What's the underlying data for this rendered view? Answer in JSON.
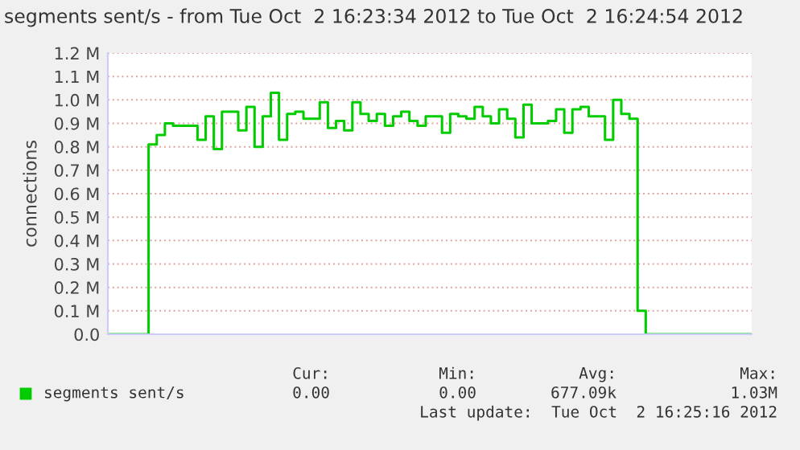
{
  "chart_data": {
    "type": "step",
    "title": "segments sent/s - from Tue Oct  2 16:23:34 2012 to Tue Oct  2 16:24:54 2012",
    "ylabel": "connections",
    "categories": [
      null,
      null,
      null,
      null,
      null,
      null,
      null,
      null,
      null,
      null,
      null,
      null,
      null,
      null,
      null,
      null,
      null,
      null,
      null,
      null,
      null,
      null,
      null,
      null,
      null,
      null,
      null,
      null,
      null,
      null,
      null,
      null,
      null,
      null,
      null,
      null,
      null,
      null,
      null,
      null,
      null,
      null,
      null,
      null,
      null,
      null,
      null,
      null,
      null,
      null,
      null,
      null,
      null,
      null,
      null,
      null,
      null,
      null,
      null,
      null,
      null,
      null,
      null,
      null,
      null,
      null,
      null,
      null,
      null,
      null,
      null,
      null,
      null,
      null,
      null,
      null,
      null,
      null,
      null,
      null
    ],
    "series": [
      {
        "name": "segments sent/s",
        "color": "#00cc00",
        "values": [
          0,
          0,
          0,
          0,
          0,
          810000,
          850000,
          900000,
          890000,
          890000,
          890000,
          830000,
          930000,
          790000,
          950000,
          950000,
          870000,
          970000,
          800000,
          930000,
          1030000,
          830000,
          940000,
          950000,
          920000,
          920000,
          990000,
          880000,
          910000,
          870000,
          990000,
          940000,
          910000,
          940000,
          890000,
          930000,
          950000,
          910000,
          890000,
          930000,
          930000,
          860000,
          940000,
          930000,
          920000,
          970000,
          930000,
          900000,
          960000,
          920000,
          840000,
          980000,
          900000,
          900000,
          910000,
          960000,
          860000,
          960000,
          970000,
          930000,
          930000,
          830000,
          1000000,
          940000,
          920000,
          100000,
          0,
          0,
          0,
          0,
          0,
          0,
          0,
          0,
          0,
          0,
          0,
          0,
          0,
          0
        ]
      }
    ],
    "ylim": [
      0,
      1200000
    ],
    "yticks": [
      {
        "value": 0,
        "label": "0.0"
      },
      {
        "value": 100000,
        "label": "0.1 M"
      },
      {
        "value": 200000,
        "label": "0.2 M"
      },
      {
        "value": 300000,
        "label": "0.3 M"
      },
      {
        "value": 400000,
        "label": "0.4 M"
      },
      {
        "value": 500000,
        "label": "0.5 M"
      },
      {
        "value": 600000,
        "label": "0.6 M"
      },
      {
        "value": 700000,
        "label": "0.7 M"
      },
      {
        "value": 800000,
        "label": "0.8 M"
      },
      {
        "value": 900000,
        "label": "0.9 M"
      },
      {
        "value": 1000000,
        "label": "1.0 M"
      },
      {
        "value": 1100000,
        "label": "1.1 M"
      },
      {
        "value": 1200000,
        "label": "1.2 M"
      }
    ],
    "grid": "y",
    "legend": "bottom",
    "tick_labels": "y",
    "annotations": [
      "Cur:",
      "Min:",
      "Avg:",
      "Max:",
      "0.00",
      "0.00",
      "677.09k",
      "1.03M",
      "Last update:  Tue Oct  2 16:25:16 2012"
    ]
  }
}
